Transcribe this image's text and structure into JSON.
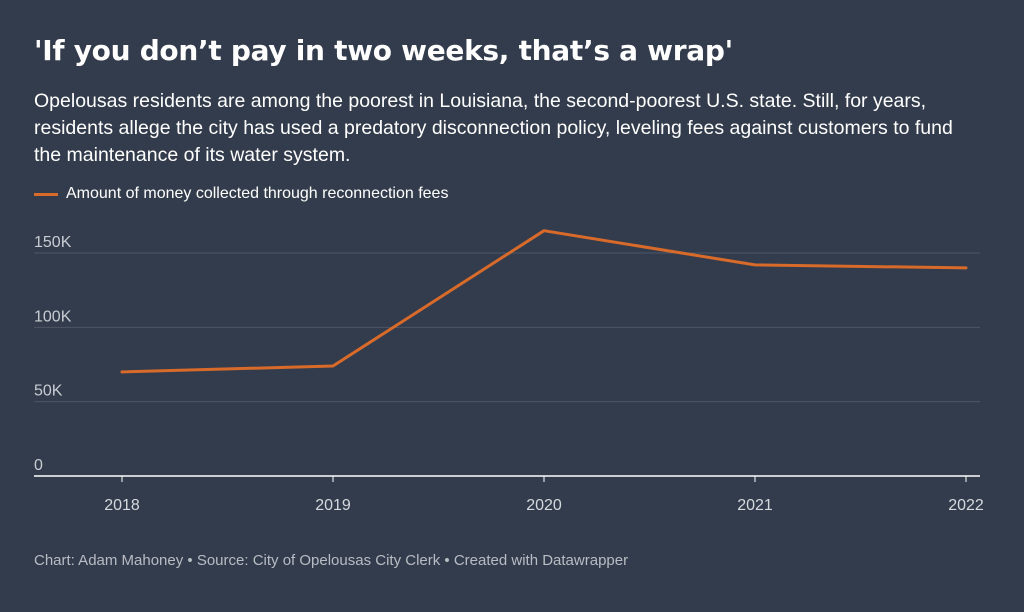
{
  "title": "'If you don’t pay in two weeks, that’s a wrap'",
  "subtitle": "Opelousas residents are among the poorest in Louisiana, the second-poorest U.S. state. Still, for years, residents allege the city has used a predatory disconnection policy, leveling fees against customers to fund the maintenance of its water system.",
  "footer": "Chart: Adam Mahoney • Source: City of Opelousas City Clerk • Created with Datawrapper",
  "colors": {
    "background": "#333c4c",
    "line": "#d86a2a",
    "grid": "#4e5666",
    "axis": "#ffffff"
  },
  "chart_data": {
    "type": "line",
    "x": [
      "2018",
      "2019",
      "2020",
      "2021",
      "2022"
    ],
    "series": [
      {
        "name": "Amount of money collected through reconnection fees",
        "values": [
          70000,
          74000,
          165000,
          142000,
          140000
        ]
      }
    ],
    "yticks": [
      {
        "value": 0,
        "label": "0"
      },
      {
        "value": 50000,
        "label": "50K"
      },
      {
        "value": 100000,
        "label": "100K"
      },
      {
        "value": 150000,
        "label": "150K"
      }
    ],
    "ylim": [
      0,
      165000
    ],
    "grid": true,
    "legend": "top-left"
  }
}
